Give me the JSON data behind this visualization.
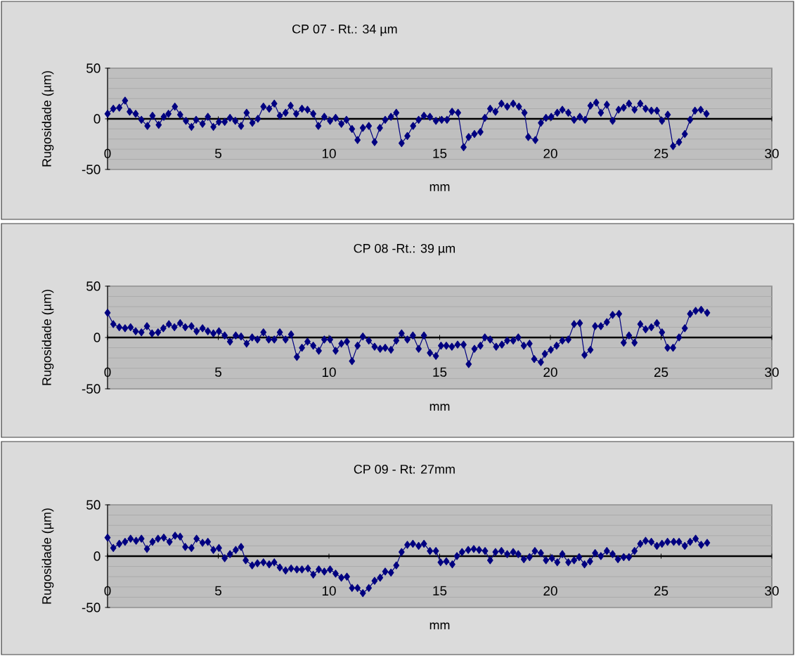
{
  "chart_data": [
    {
      "type": "line",
      "title": "CP 07 - Rt.: 34 µm",
      "xlabel": "mm",
      "ylabel": "Rugosidade (µm)",
      "color": "#000080",
      "marker": "diamond",
      "line_style": "solid",
      "grid": "y",
      "xlim": [
        0,
        30
      ],
      "xticks": [
        0,
        5,
        10,
        15,
        20,
        25,
        30
      ],
      "ylim": [
        -50,
        50
      ],
      "yticks": [
        -50,
        {
          "value": -40,
          "label": null
        },
        {
          "value": -30,
          "label": null
        },
        {
          "value": -20,
          "label": null
        },
        {
          "value": -10,
          "label": null
        },
        0,
        {
          "value": 10,
          "label": null
        },
        {
          "value": 20,
          "label": null
        },
        {
          "value": 30,
          "label": null
        },
        {
          "value": 40,
          "label": null
        },
        50
      ],
      "x": [
        0,
        0.26,
        0.53,
        0.79,
        1.0,
        1.27,
        1.53,
        1.8,
        2.03,
        2.31,
        2.54,
        2.75,
        3.04,
        3.28,
        3.54,
        3.79,
        4.0,
        4.29,
        4.53,
        4.78,
        5.03,
        5.29,
        5.53,
        5.77,
        6.03,
        6.28,
        6.54,
        6.79,
        7.04,
        7.3,
        7.53,
        7.78,
        8.04,
        8.27,
        8.52,
        8.78,
        9.03,
        9.29,
        9.52,
        9.79,
        10.05,
        10.3,
        10.56,
        10.79,
        11.04,
        11.29,
        11.53,
        11.8,
        12.06,
        12.3,
        12.54,
        12.8,
        13.04,
        13.28,
        13.54,
        13.8,
        14.05,
        14.29,
        14.56,
        14.83,
        15.09,
        15.33,
        15.56,
        15.83,
        16.08,
        16.31,
        16.57,
        16.84,
        17.04,
        17.28,
        17.52,
        17.79,
        18.05,
        18.32,
        18.58,
        18.83,
        19.0,
        19.32,
        19.57,
        19.8,
        20.04,
        20.31,
        20.54,
        20.81,
        21.07,
        21.33,
        21.57,
        21.81,
        22.07,
        22.28,
        22.55,
        22.81,
        23.08,
        23.31,
        23.55,
        23.8,
        24.06,
        24.3,
        24.56,
        24.81,
        25.04,
        25.3,
        25.54,
        25.81,
        26.07,
        26.31,
        26.53,
        26.79,
        27.05
      ],
      "values": [
        5,
        10,
        11,
        18,
        7,
        5,
        -1,
        -7,
        3,
        -6,
        2,
        5,
        12,
        4,
        -2,
        -8,
        -1,
        -5,
        2,
        -8,
        -3,
        -3,
        1,
        -2,
        -7,
        6,
        -4,
        0,
        12,
        10,
        15,
        3,
        6,
        13,
        5,
        10,
        9,
        5,
        -7,
        2,
        -2,
        1,
        -5,
        -1,
        -10,
        -21,
        -9,
        -7,
        -23,
        -9,
        -1,
        2,
        6,
        -24,
        -17,
        -7,
        -1,
        3,
        2,
        -2,
        -1,
        -1,
        7,
        6,
        -28,
        -18,
        -15,
        -13,
        1,
        10,
        7,
        15,
        12,
        15,
        12,
        6,
        -18,
        -21,
        -4,
        1,
        2,
        6,
        9,
        6,
        -1,
        2,
        -1,
        13,
        16,
        6,
        14,
        -2,
        9,
        11,
        15,
        9,
        15,
        10,
        8,
        8,
        -2,
        4,
        -27,
        -23,
        -15,
        -1,
        8,
        9,
        5
      ]
    },
    {
      "type": "line",
      "title": "CP 08 -Rt.: 39 µm",
      "xlabel": "mm",
      "ylabel": "Rugosidade (µm)",
      "color": "#000080",
      "marker": "diamond",
      "line_style": "solid",
      "grid": "y",
      "xlim": [
        0,
        30
      ],
      "xticks": [
        0,
        5,
        10,
        15,
        20,
        25,
        30
      ],
      "ylim": [
        -50,
        50
      ],
      "yticks": [
        -50,
        {
          "value": -40,
          "label": null
        },
        {
          "value": -30,
          "label": null
        },
        {
          "value": -20,
          "label": null
        },
        {
          "value": -10,
          "label": null
        },
        0,
        {
          "value": 10,
          "label": null
        },
        {
          "value": 20,
          "label": null
        },
        {
          "value": 30,
          "label": null
        },
        {
          "value": 40,
          "label": null
        },
        50
      ],
      "x": [
        0,
        0.26,
        0.53,
        0.79,
        1.04,
        1.27,
        1.53,
        1.78,
        2.01,
        2.28,
        2.52,
        2.77,
        3.02,
        3.28,
        3.51,
        3.79,
        4.02,
        4.29,
        4.53,
        4.78,
        5.03,
        5.29,
        5.53,
        5.79,
        6.03,
        6.28,
        6.53,
        6.77,
        7.04,
        7.28,
        7.53,
        7.78,
        8.04,
        8.29,
        8.55,
        8.78,
        9.03,
        9.29,
        9.54,
        9.79,
        10.05,
        10.3,
        10.56,
        10.81,
        11.04,
        11.29,
        11.53,
        11.8,
        12.06,
        12.31,
        12.54,
        12.8,
        13.04,
        13.28,
        13.54,
        13.79,
        14.05,
        14.29,
        14.56,
        14.83,
        15.06,
        15.3,
        15.55,
        15.81,
        16.08,
        16.31,
        16.57,
        16.84,
        17.04,
        17.28,
        17.55,
        17.81,
        18.05,
        18.32,
        18.55,
        18.8,
        19.06,
        19.27,
        19.57,
        19.75,
        20.02,
        20.28,
        20.54,
        20.81,
        21.07,
        21.33,
        21.54,
        21.81,
        22.02,
        22.28,
        22.55,
        22.81,
        23.1,
        23.31,
        23.55,
        23.8,
        24.06,
        24.3,
        24.56,
        24.81,
        25.04,
        25.29,
        25.54,
        25.81,
        26.07,
        26.31,
        26.56,
        26.81,
        27.08
      ],
      "values": [
        24,
        13,
        10,
        9,
        10,
        6,
        5,
        11,
        4,
        5,
        9,
        13,
        10,
        14,
        10,
        11,
        6,
        9,
        6,
        4,
        6,
        2,
        -4,
        2,
        1,
        -6,
        0,
        -2,
        5,
        -2,
        -2,
        5,
        -2,
        3,
        -19,
        -10,
        -4,
        -8,
        -13,
        -2,
        -2,
        -13,
        -6,
        -4,
        -23,
        -8,
        1,
        -3,
        -9,
        -11,
        -10,
        -12,
        -3,
        4,
        -2,
        2,
        -11,
        2,
        -15,
        -18,
        -8,
        -8,
        -9,
        -7,
        -7,
        -26,
        -11,
        -8,
        0,
        -2,
        -9,
        -7,
        -3,
        -3,
        0,
        -8,
        -6,
        -21,
        -24,
        -16,
        -12,
        -8,
        -3,
        -2,
        13,
        14,
        -17,
        -12,
        11,
        11,
        15,
        22,
        23,
        -5,
        2,
        -5,
        13,
        8,
        10,
        14,
        5,
        -10,
        -10,
        0,
        9,
        23,
        26,
        27,
        24
      ]
    },
    {
      "type": "line",
      "title": "CP 09 - Rt: 27mm",
      "xlabel": "mm",
      "ylabel": "Rugosidade (µm)",
      "color": "#000080",
      "marker": "diamond",
      "line_style": "solid",
      "grid": "y",
      "xlim": [
        0,
        30
      ],
      "xticks": [
        0,
        5,
        10,
        15,
        20,
        25,
        30
      ],
      "ylim": [
        -50,
        50
      ],
      "yticks": [
        -50,
        {
          "value": -40,
          "label": null
        },
        {
          "value": -30,
          "label": null
        },
        {
          "value": -20,
          "label": null
        },
        {
          "value": -10,
          "label": null
        },
        0,
        {
          "value": 10,
          "label": null
        },
        {
          "value": 20,
          "label": null
        },
        {
          "value": 30,
          "label": null
        },
        {
          "value": 40,
          "label": null
        },
        50
      ],
      "x": [
        0,
        0.26,
        0.53,
        0.79,
        1.04,
        1.29,
        1.53,
        1.78,
        2.03,
        2.28,
        2.54,
        2.8,
        3.05,
        3.28,
        3.51,
        3.79,
        4.02,
        4.29,
        4.53,
        4.78,
        5.03,
        5.29,
        5.53,
        5.79,
        6.03,
        6.24,
        6.53,
        6.77,
        7.04,
        7.3,
        7.53,
        7.78,
        8.04,
        8.29,
        8.55,
        8.78,
        9.05,
        9.29,
        9.54,
        9.79,
        10.05,
        10.3,
        10.56,
        10.81,
        11.04,
        11.29,
        11.53,
        11.8,
        12.06,
        12.31,
        12.54,
        12.8,
        13.04,
        13.28,
        13.54,
        13.79,
        14.05,
        14.29,
        14.56,
        14.83,
        15.04,
        15.3,
        15.57,
        15.78,
        16.01,
        16.29,
        16.54,
        16.78,
        17.05,
        17.28,
        17.52,
        17.79,
        18.05,
        18.32,
        18.55,
        18.8,
        19.06,
        19.3,
        19.57,
        19.8,
        20.07,
        20.31,
        20.54,
        20.81,
        21.07,
        21.3,
        21.54,
        21.79,
        22.02,
        22.28,
        22.55,
        22.81,
        23.05,
        23.31,
        23.55,
        23.8,
        24.06,
        24.3,
        24.56,
        24.81,
        25.04,
        25.29,
        25.57,
        25.81,
        26.07,
        26.31,
        26.56,
        26.81,
        27.08
      ],
      "values": [
        18,
        8,
        12,
        14,
        17,
        15,
        17,
        7,
        14,
        17,
        18,
        14,
        20,
        19,
        9,
        8,
        17,
        13,
        14,
        6,
        8,
        -2,
        2,
        6,
        9,
        -4,
        -9,
        -7,
        -6,
        -8,
        -6,
        -11,
        -14,
        -12,
        -13,
        -13,
        -12,
        -18,
        -13,
        -15,
        -13,
        -17,
        -21,
        -20,
        -31,
        -31,
        -36,
        -31,
        -24,
        -21,
        -15,
        -16,
        -9,
        4,
        11,
        12,
        10,
        12,
        5,
        5,
        -6,
        -5,
        -8,
        0,
        4,
        6,
        7,
        6,
        5,
        -4,
        4,
        5,
        2,
        4,
        2,
        -3,
        -1,
        5,
        3,
        -4,
        -2,
        -6,
        2,
        -6,
        -4,
        -1,
        -8,
        -5,
        3,
        0,
        5,
        2,
        -3,
        -1,
        -1,
        5,
        12,
        15,
        14,
        10,
        12,
        14,
        14,
        14,
        10,
        14,
        17,
        11,
        13
      ]
    }
  ]
}
